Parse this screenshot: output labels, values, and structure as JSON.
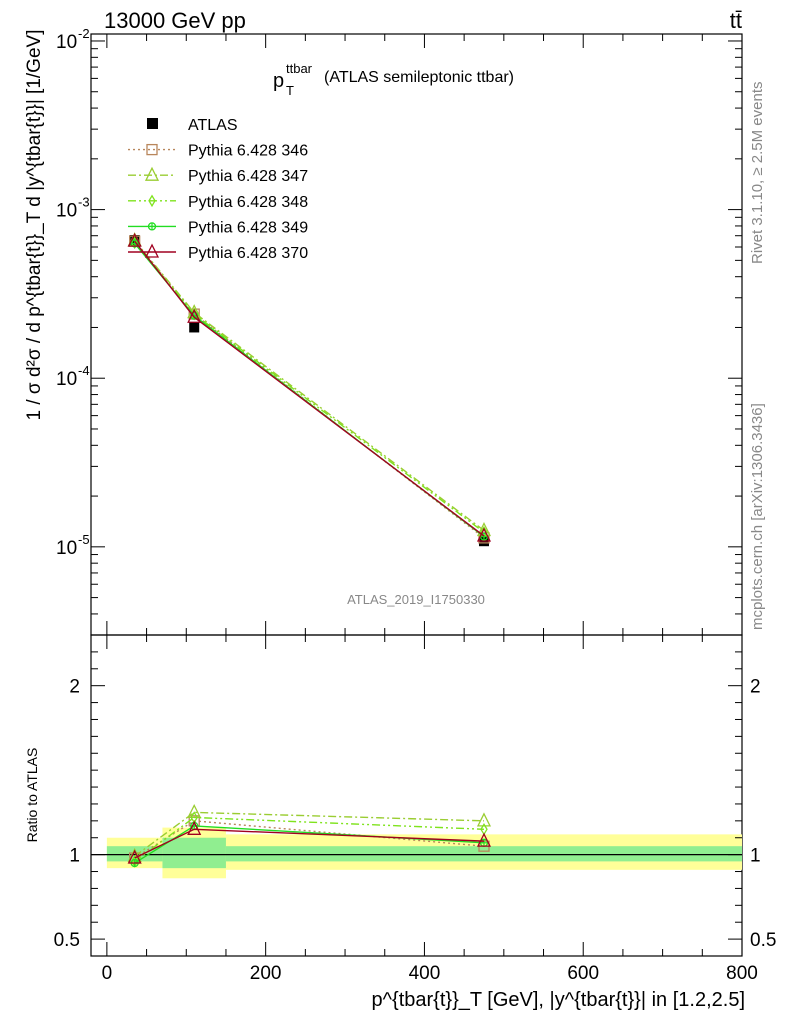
{
  "header": {
    "left": "13000 GeV pp",
    "right": "tt̄"
  },
  "title": {
    "main": "p",
    "sub": "T",
    "sup": "ttbar",
    "rest": "(ATLAS semileptonic ttbar)"
  },
  "side_labels": {
    "rivet": "Rivet 3.1.10, ≥ 2.5M events",
    "mcplots": "mcplots.cern.ch [arXiv:1306.3436]"
  },
  "analysis_id": "ATLAS_2019_I1750330",
  "upper_ylabel": "1 / σ d²σ / d p^{tbar{t}}_T d |y^{tbar{t}}| [1/GeV]",
  "lower_ylabel": "Ratio to ATLAS",
  "xlabel": "p^{tbar{t}}_T [GeV], |y^{tbar{t}}| in [1.2,2.5]",
  "colors": {
    "data": "#000000",
    "p346": "#b8865b",
    "p347": "#9acd32",
    "p348": "#7fe31d",
    "p349": "#22dd22",
    "p370": "#a00020",
    "band_inner": "#90ee90",
    "band_outer": "#ffff99"
  },
  "chart_data": {
    "type": "line",
    "xlim": [
      -20,
      800
    ],
    "x_ticks": [
      0,
      200,
      400,
      600,
      800
    ],
    "upper": {
      "yscale": "log",
      "ylim": [
        3e-06,
        0.011
      ],
      "y_ticks": [
        "10^{-5}",
        "10^{-4}",
        "10^{-3}",
        "10^{-2}"
      ],
      "x": [
        35,
        110,
        475
      ],
      "series": [
        {
          "name": "ATLAS",
          "key": "data",
          "values": [
            0.00066,
            0.0002,
            1.08e-05
          ]
        },
        {
          "name": "Pythia 6.428 346",
          "key": "p346",
          "values": [
            0.00065,
            0.00024,
            1.13e-05
          ]
        },
        {
          "name": "Pythia 6.428 347",
          "key": "p347",
          "values": [
            0.000655,
            0.000245,
            1.25e-05
          ]
        },
        {
          "name": "Pythia 6.428 348",
          "key": "p348",
          "values": [
            0.000635,
            0.00024,
            1.22e-05
          ]
        },
        {
          "name": "Pythia 6.428 349",
          "key": "p349",
          "values": [
            0.00063,
            0.000235,
            1.15e-05
          ]
        },
        {
          "name": "Pythia 6.428 370",
          "key": "p370",
          "values": [
            0.00065,
            0.00023,
            1.16e-05
          ]
        }
      ]
    },
    "lower": {
      "ylim": [
        0.4,
        2.3
      ],
      "y_ticks": [
        0.5,
        1,
        2
      ],
      "y_tick_labels": [
        "0.5",
        "1",
        "2"
      ],
      "bins": [
        {
          "lo": 0,
          "hi": 70,
          "inner": [
            0.96,
            1.05
          ],
          "outer": [
            0.92,
            1.1
          ]
        },
        {
          "lo": 70,
          "hi": 150,
          "inner": [
            0.92,
            1.1
          ],
          "outer": [
            0.86,
            1.16
          ]
        },
        {
          "lo": 150,
          "hi": 800,
          "inner": [
            0.96,
            1.05
          ],
          "outer": [
            0.91,
            1.12
          ]
        }
      ],
      "series": [
        {
          "name": "Pythia 6.428 346",
          "key": "p346",
          "values": [
            0.98,
            1.2,
            1.05
          ]
        },
        {
          "name": "Pythia 6.428 347",
          "key": "p347",
          "values": [
            0.99,
            1.25,
            1.2
          ]
        },
        {
          "name": "Pythia 6.428 348",
          "key": "p348",
          "values": [
            0.96,
            1.22,
            1.15
          ]
        },
        {
          "name": "Pythia 6.428 349",
          "key": "p349",
          "values": [
            0.95,
            1.17,
            1.07
          ]
        },
        {
          "name": "Pythia 6.428 370",
          "key": "p370",
          "values": [
            0.98,
            1.15,
            1.08
          ]
        }
      ]
    },
    "legend": {
      "placement": "top-left",
      "entries": [
        "ATLAS",
        "Pythia 6.428 346",
        "Pythia 6.428 347",
        "Pythia 6.428 348",
        "Pythia 6.428 349",
        "Pythia 6.428 370"
      ]
    }
  }
}
